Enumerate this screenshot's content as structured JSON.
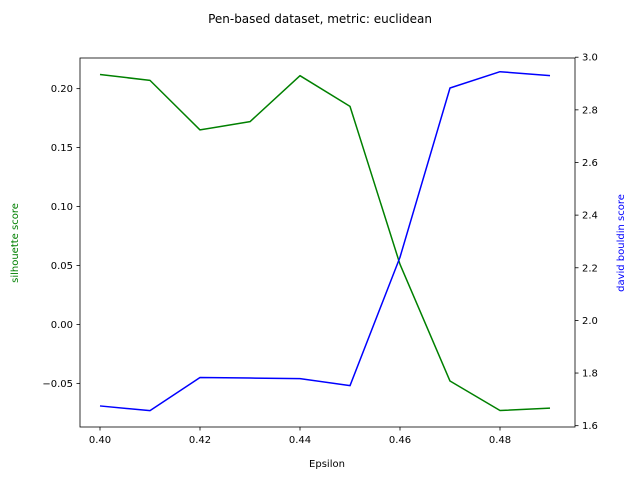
{
  "chart_data": {
    "type": "line",
    "title": "Pen-based dataset, metric: euclidean",
    "xlabel": "Epsilon",
    "x": [
      0.4,
      0.41,
      0.42,
      0.43,
      0.44,
      0.45,
      0.46,
      0.47,
      0.48,
      0.49
    ],
    "xlim": [
      0.396,
      0.495
    ],
    "xticks": [
      0.4,
      0.42,
      0.44,
      0.46,
      0.48
    ],
    "xtick_labels": [
      "0.40",
      "0.42",
      "0.44",
      "0.46",
      "0.48"
    ],
    "y_left": {
      "label": "silhouette score",
      "color": "#008000",
      "lim": [
        -0.087,
        0.226
      ],
      "ticks": [
        -0.05,
        0.0,
        0.05,
        0.1,
        0.15,
        0.2
      ],
      "tick_labels": [
        "−0.05",
        "0.00",
        "0.05",
        "0.10",
        "0.15",
        "0.20"
      ]
    },
    "y_right": {
      "label": "david bouldin score",
      "color": "#0000ff",
      "lim": [
        1.595,
        2.997
      ],
      "ticks": [
        1.6,
        1.8,
        2.0,
        2.2,
        2.4,
        2.6,
        2.8,
        3.0
      ],
      "tick_labels": [
        "1.6",
        "1.8",
        "2.0",
        "2.2",
        "2.4",
        "2.6",
        "2.8",
        "3.0"
      ]
    },
    "series": [
      {
        "name": "silhouette score",
        "axis": "left",
        "color": "#008000",
        "values": [
          0.212,
          0.207,
          0.165,
          0.172,
          0.211,
          0.185,
          0.051,
          -0.048,
          -0.073,
          -0.071
        ]
      },
      {
        "name": "david bouldin score",
        "axis": "right",
        "color": "#0000ff",
        "values": [
          1.675,
          1.657,
          1.783,
          1.781,
          1.779,
          1.752,
          2.24,
          2.883,
          2.945,
          2.93
        ]
      }
    ],
    "grid": false,
    "legend": "none"
  }
}
